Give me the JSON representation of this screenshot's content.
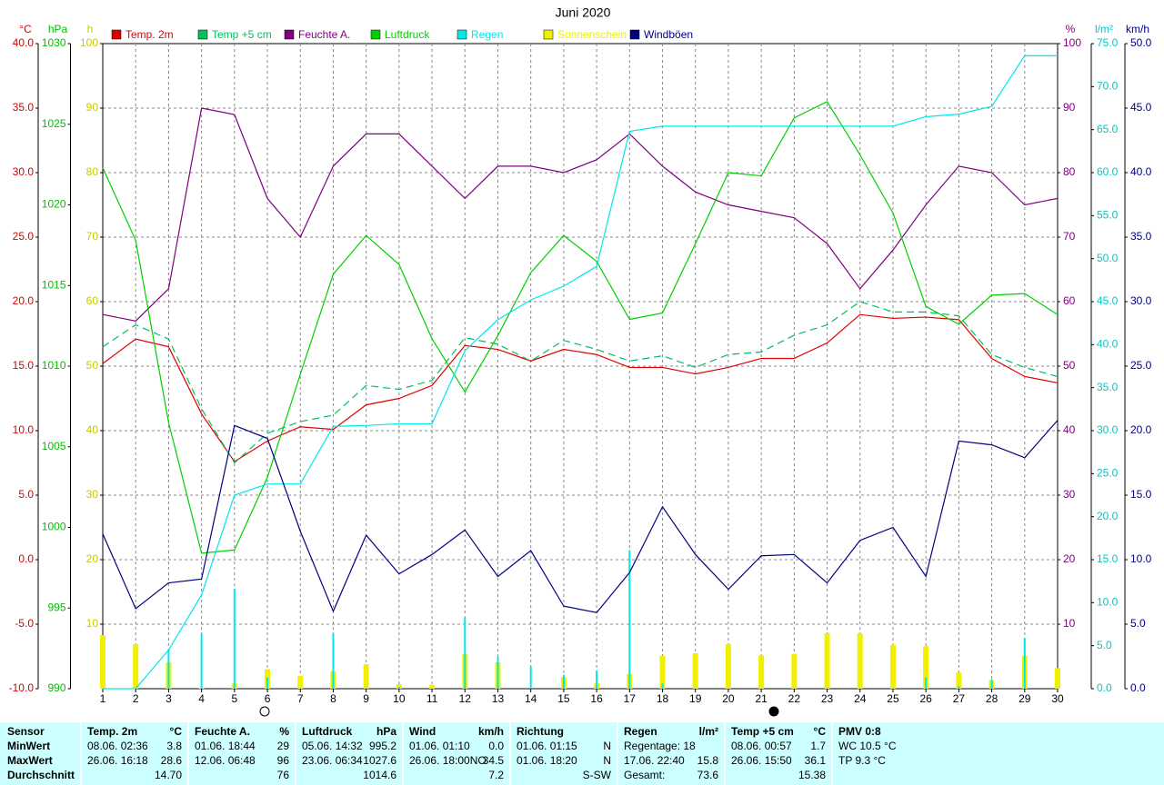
{
  "chart_data": {
    "type": "line",
    "title": "Juni 2020",
    "categories": [
      1,
      2,
      3,
      4,
      5,
      6,
      7,
      8,
      9,
      10,
      11,
      12,
      13,
      14,
      15,
      16,
      17,
      18,
      19,
      20,
      21,
      22,
      23,
      24,
      25,
      26,
      27,
      28,
      29,
      30
    ],
    "xgrid": true,
    "axes": [
      {
        "label": "°C",
        "side": "left",
        "color": "#e00000",
        "grid": true,
        "ylim": [
          -10,
          40
        ],
        "yticks": [
          {
            "value": -10,
            "label": "-10.0"
          },
          {
            "value": -5,
            "label": "-5.0"
          },
          {
            "value": 0,
            "label": "0.0"
          },
          {
            "value": 5,
            "label": "5.0"
          },
          {
            "value": 10,
            "label": "10.0"
          },
          {
            "value": 15,
            "label": "15.0"
          },
          {
            "value": 20,
            "label": "20.0"
          },
          {
            "value": 25,
            "label": "25.0"
          },
          {
            "value": 30,
            "label": "30.0"
          },
          {
            "value": 35,
            "label": "35.0"
          },
          {
            "value": 40,
            "label": "40.0"
          }
        ]
      },
      {
        "label": "hPa",
        "side": "left",
        "color": "#00c000",
        "grid": false,
        "ylim": [
          990,
          1030
        ],
        "yticks": [
          990,
          995,
          1000,
          1005,
          1010,
          1015,
          1020,
          1025,
          1030
        ]
      },
      {
        "label": "h",
        "side": "left",
        "color": "#c8c800",
        "grid": false,
        "ylim": [
          0,
          100
        ],
        "yticks": [
          10,
          20,
          30,
          40,
          50,
          60,
          70,
          80,
          90,
          100
        ]
      },
      {
        "label": "%",
        "side": "right",
        "color": "#800080",
        "grid": false,
        "ylim": [
          0,
          100
        ],
        "yticks": [
          10,
          20,
          30,
          40,
          50,
          60,
          70,
          80,
          90,
          100
        ]
      },
      {
        "label": "l/m²",
        "side": "right",
        "color": "#00c8c8",
        "grid": false,
        "ylim": [
          0,
          75
        ],
        "yticks": [
          {
            "value": 0,
            "label": "0.0"
          },
          {
            "value": 5,
            "label": "5.0"
          },
          {
            "value": 10,
            "label": "10.0"
          },
          {
            "value": 15,
            "label": "15.0"
          },
          {
            "value": 20,
            "label": "20.0"
          },
          {
            "value": 25,
            "label": "25.0"
          },
          {
            "value": 30,
            "label": "30.0"
          },
          {
            "value": 35,
            "label": "35.0"
          },
          {
            "value": 40,
            "label": "40.0"
          },
          {
            "value": 45,
            "label": "45.0"
          },
          {
            "value": 50,
            "label": "50.0"
          },
          {
            "value": 55,
            "label": "55.0"
          },
          {
            "value": 60,
            "label": "60.0"
          },
          {
            "value": 65,
            "label": "65.0"
          },
          {
            "value": 70,
            "label": "70.0"
          },
          {
            "value": 75,
            "label": "75.0"
          }
        ]
      },
      {
        "label": "km/h",
        "side": "right",
        "color": "#000080",
        "grid": false,
        "ylim": [
          0,
          50
        ],
        "yticks": [
          {
            "value": 0,
            "label": "0.0"
          },
          {
            "value": 5,
            "label": "5.0"
          },
          {
            "value": 10,
            "label": "10.0"
          },
          {
            "value": 15,
            "label": "15.0"
          },
          {
            "value": 20,
            "label": "20.0"
          },
          {
            "value": 25,
            "label": "25.0"
          },
          {
            "value": 30,
            "label": "30.0"
          },
          {
            "value": 35,
            "label": "35.0"
          },
          {
            "value": 40,
            "label": "40.0"
          },
          {
            "value": 45,
            "label": "45.0"
          },
          {
            "value": 50,
            "label": "50.0"
          }
        ]
      }
    ],
    "series": [
      {
        "name": "Temp. 2m",
        "color": "#e00000",
        "axis": 0,
        "style": "solid",
        "values": [
          15.2,
          17.1,
          16.5,
          11.3,
          7.6,
          9.2,
          10.3,
          10.1,
          12.0,
          12.5,
          13.5,
          16.6,
          16.3,
          15.4,
          16.3,
          15.9,
          14.9,
          14.9,
          14.4,
          14.9,
          15.6,
          15.6,
          16.8,
          19.0,
          18.7,
          18.8,
          18.6,
          15.6,
          14.2,
          13.7
        ]
      },
      {
        "name": "Temp +5 cm",
        "color": "#00c060",
        "axis": 0,
        "style": "dashed",
        "values": [
          16.5,
          18.2,
          17.1,
          11.7,
          7.5,
          9.8,
          10.7,
          11.2,
          13.5,
          13.2,
          13.9,
          17.2,
          16.7,
          15.4,
          17.0,
          16.3,
          15.4,
          15.8,
          14.9,
          15.9,
          16.1,
          17.4,
          18.2,
          20.0,
          19.2,
          19.2,
          18.9,
          15.9,
          14.9,
          14.2
        ]
      },
      {
        "name": "Feuchte A.",
        "color": "#800080",
        "axis": 3,
        "style": "solid",
        "values": [
          58,
          57,
          62,
          90,
          89,
          76,
          70,
          81,
          86,
          86,
          81,
          76,
          81,
          81,
          80,
          82,
          86,
          81,
          77,
          75,
          74,
          73,
          69,
          62,
          68,
          75,
          81,
          80,
          75,
          76
        ]
      },
      {
        "name": "Luftdruck",
        "color": "#00d000",
        "axis": 1,
        "style": "solid",
        "values": [
          1022.3,
          1017.8,
          1006.5,
          998.4,
          998.6,
          1003.1,
          1009.5,
          1015.7,
          1018.1,
          1016.3,
          1011.7,
          1008.4,
          1011.9,
          1015.8,
          1018.1,
          1016.5,
          1012.9,
          1013.3,
          1017.6,
          1022.0,
          1021.8,
          1025.4,
          1026.4,
          1023.1,
          1019.5,
          1013.7,
          1012.6,
          1014.4,
          1014.5,
          1013.2
        ]
      },
      {
        "name": "Regen",
        "color": "#00e8e8",
        "axis": 4,
        "style": "solid",
        "values": [
          0,
          0,
          4.5,
          10.9,
          22.5,
          23.8,
          23.8,
          30.5,
          30.6,
          30.8,
          30.8,
          39.3,
          42.9,
          45.2,
          46.8,
          49.1,
          64.8,
          65.4,
          65.4,
          65.4,
          65.4,
          65.4,
          65.4,
          65.4,
          65.4,
          66.5,
          66.8,
          67.7,
          73.6,
          73.6
        ],
        "daily_values": [
          0,
          0,
          4.6,
          6.4,
          11.6,
          1.3,
          0,
          6.4,
          0.1,
          0.2,
          0,
          8.3,
          3.7,
          2.6,
          1.6,
          2.1,
          16.1,
          0.6,
          0,
          0,
          0,
          0,
          0,
          0,
          0,
          1.3,
          0.3,
          1.1,
          5.9,
          0
        ]
      },
      {
        "name": "Sonnenschein",
        "color": "#f0f000",
        "axis": 2,
        "style": "bar",
        "values": [
          8.3,
          6.9,
          4.1,
          0.1,
          0.8,
          3.0,
          2.0,
          2.7,
          3.8,
          0.7,
          0.6,
          5.4,
          4.1,
          0,
          1.8,
          0.8,
          2.3,
          5.1,
          5.5,
          6.9,
          5.2,
          5.4,
          8.6,
          8.6,
          6.8,
          6.6,
          2.5,
          1.3,
          5.1,
          3.2
        ]
      },
      {
        "name": "Windböen",
        "color": "#000080",
        "axis": 5,
        "style": "solid",
        "values": [
          12.0,
          6.2,
          8.2,
          8.5,
          20.4,
          19.4,
          12.2,
          6.0,
          11.9,
          8.9,
          10.4,
          12.3,
          8.7,
          10.7,
          6.4,
          5.9,
          9.0,
          14.1,
          10.4,
          7.7,
          10.3,
          10.4,
          8.2,
          11.5,
          12.5,
          8.7,
          19.2,
          18.9,
          17.9,
          20.8
        ]
      }
    ]
  },
  "table": {
    "row_labels": [
      "Sensor",
      "MinWert",
      "MaxWert",
      "Durchschnitt"
    ],
    "columns": [
      {
        "header": "Temp. 2m",
        "unit": "°C",
        "rows": [
          {
            "left": "08.06. 02:36",
            "right": "3.8"
          },
          {
            "left": "26.06. 16:18",
            "right": "28.6"
          },
          {
            "right": "14.70"
          }
        ]
      },
      {
        "header": "Feuchte A.",
        "unit": "%",
        "rows": [
          {
            "left": "01.06. 18:44",
            "right": "29"
          },
          {
            "left": "12.06. 06:48",
            "right": "96"
          },
          {
            "right": "76"
          }
        ]
      },
      {
        "header": "Luftdruck",
        "unit": "hPa",
        "rows": [
          {
            "left": "05.06. 14:32",
            "right": "995.2"
          },
          {
            "left": "23.06. 06:34",
            "right": "1027.6"
          },
          {
            "right": "1014.6"
          }
        ]
      },
      {
        "header": "Wind",
        "unit": "km/h",
        "rows": [
          {
            "left": "01.06. 01:10",
            "right": "0.0"
          },
          {
            "left": "26.06. 18:00NO",
            "right": "34.5"
          },
          {
            "right": "7.2"
          }
        ]
      },
      {
        "header": "Richtung",
        "rows": [
          {
            "left": "01.06. 01:15",
            "right": "N"
          },
          {
            "left": "01.06. 18:20",
            "right": "N"
          },
          {
            "right": "S-SW"
          }
        ]
      },
      {
        "header": "Regen",
        "unit": "l/m²",
        "rows": [
          {
            "left": "Regentage: 18"
          },
          {
            "left": "17.06. 22:40",
            "right": "15.8"
          },
          {
            "left": "Gesamt:",
            "right": "73.6"
          }
        ]
      },
      {
        "header": "Temp +5 cm",
        "unit": "°C",
        "rows": [
          {
            "left": "08.06. 00:57",
            "right": "1.7"
          },
          {
            "left": "26.06. 15:50",
            "right": "36.1"
          },
          {
            "right": "15.38"
          }
        ]
      },
      {
        "header": "PMV 0:8",
        "rows": [
          {
            "left": "WC 10.5 °C"
          },
          {
            "left": "TP 9.3 °C"
          }
        ]
      }
    ]
  }
}
